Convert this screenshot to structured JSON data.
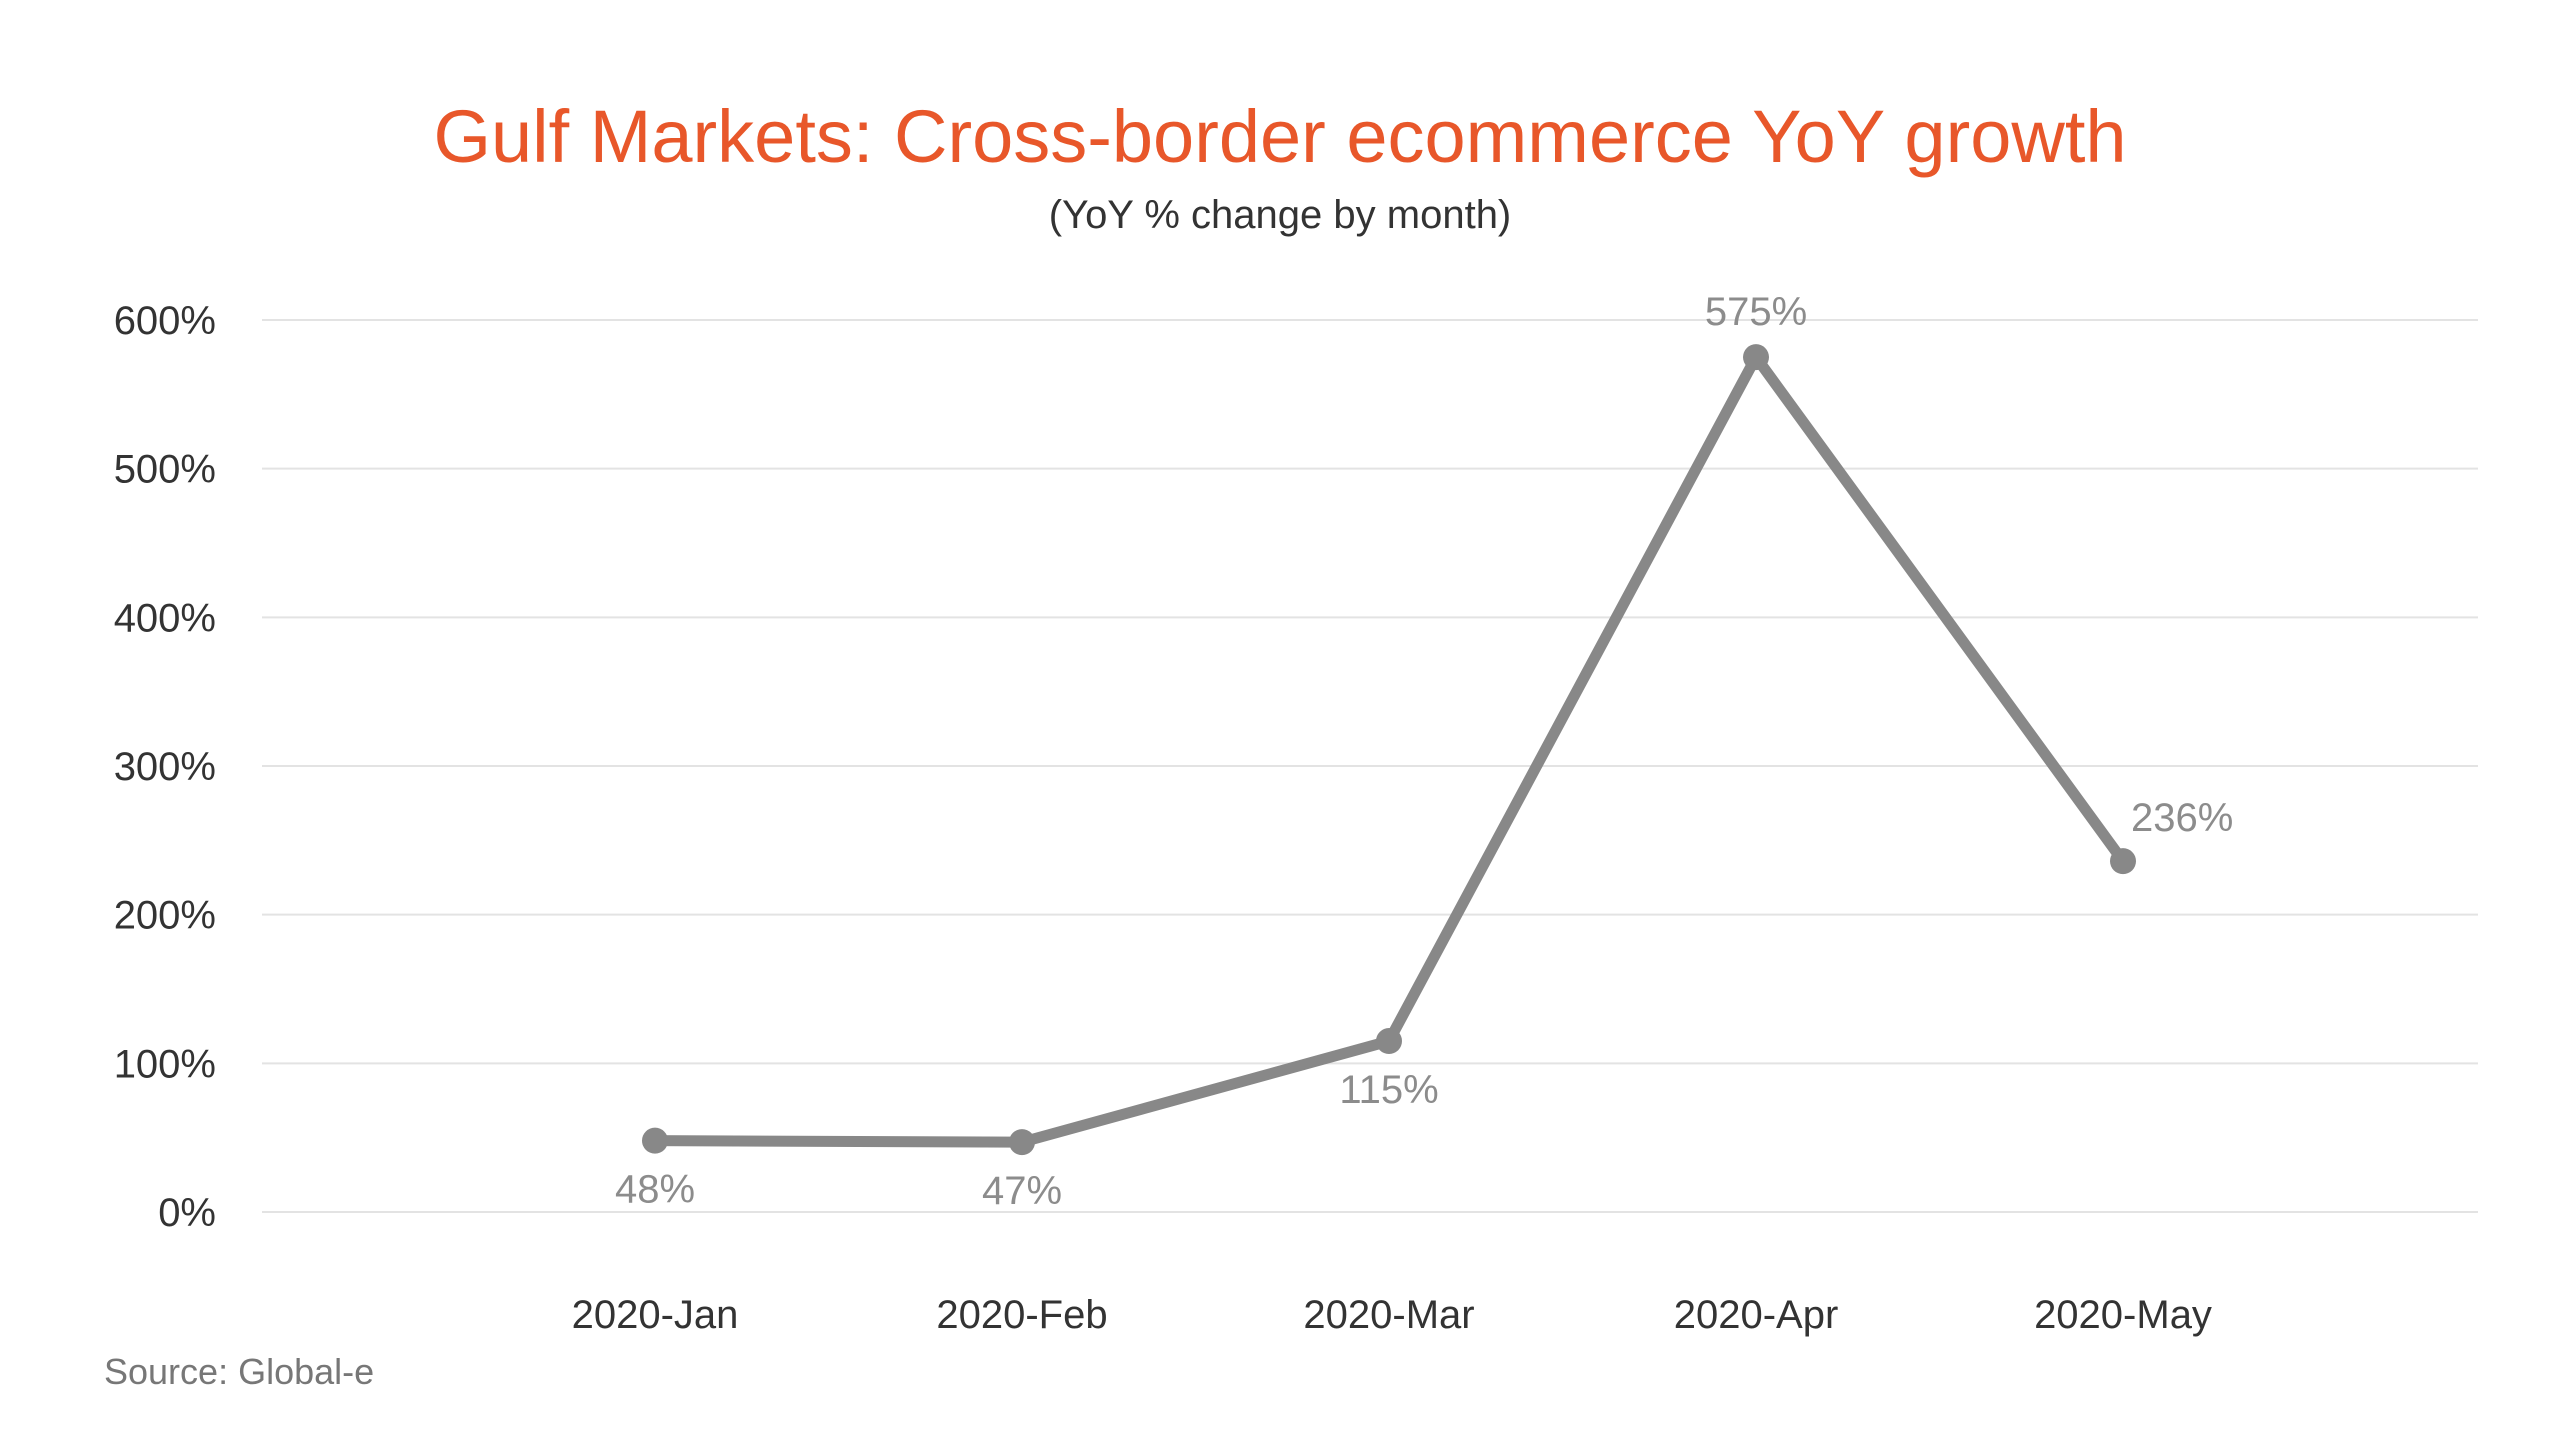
{
  "chart_data": {
    "type": "line",
    "title": "Gulf Markets: Cross-border ecommerce YoY growth",
    "subtitle": "(YoY % change by month)",
    "xlabel": "",
    "ylabel": "",
    "categories": [
      "2020-Jan",
      "2020-Feb",
      "2020-Mar",
      "2020-Apr",
      "2020-May"
    ],
    "series": [
      {
        "values": [
          48,
          47,
          115,
          575,
          236
        ],
        "data_labels": [
          "48%",
          "47%",
          "115%",
          "575%",
          "236%"
        ],
        "label_positions": [
          "below",
          "below",
          "below",
          "above",
          "above-right"
        ]
      }
    ],
    "ylim": [
      0,
      600
    ],
    "y_ticks": [
      0,
      100,
      200,
      300,
      400,
      500,
      600
    ],
    "y_tick_labels": [
      "0%",
      "100%",
      "200%",
      "300%",
      "400%",
      "500%",
      "600%"
    ],
    "grid": true,
    "legend": "none",
    "source": "Source: Global-e",
    "colors": {
      "title": "#e8572a",
      "text": "#333333",
      "line": "#888888",
      "data_label": "#8c8c8c",
      "grid": "#e3e3e3",
      "source": "#777777"
    }
  }
}
